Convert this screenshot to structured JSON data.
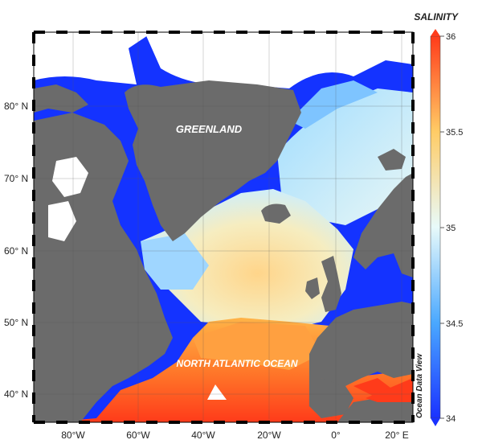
{
  "map": {
    "region_labels": {
      "greenland": "GREENLAND",
      "ocean": "NORTH ATLANTIC OCEAN"
    },
    "lat_ticks": [
      "80° N",
      "70° N",
      "60° N",
      "50° N",
      "40° N"
    ],
    "lon_ticks": [
      "80°W",
      "60°W",
      "40°W",
      "20°W",
      "0°",
      "20° E"
    ],
    "watermark": "Ocean Data View"
  },
  "colorbar": {
    "title": "SALINITY",
    "ticks": [
      "36",
      "35.5",
      "35",
      "34.5",
      "34"
    ],
    "min": 34,
    "max": 36,
    "colors": {
      "low": "#1a32ff",
      "mid_low": "#4aa8ff",
      "mid": "#e8fafa",
      "mid_high": "#ffcc66",
      "high": "#ff3b1a"
    }
  },
  "colors": {
    "land": "#6b6b6b",
    "no_data": "#ffffff",
    "fresh_water": "#1433ff"
  }
}
